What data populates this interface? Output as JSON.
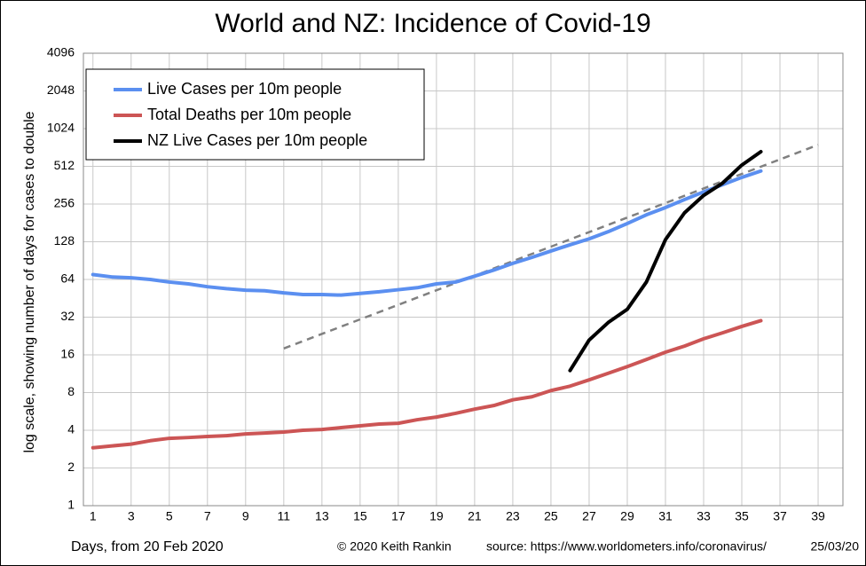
{
  "chart_data": {
    "type": "line",
    "title": "World and NZ: Incidence of Covid-19",
    "y_label": "log scale, showing number of days for cases to double",
    "x_label": "Days, from 20 Feb 2020",
    "credits": [
      "© 2020  Keith Rankin",
      "source: https://www.worldometers.info/coronavirus/",
      "25/03/20"
    ],
    "log_scale_y": true,
    "grid": true,
    "legend_position": "upper-left",
    "x": [
      1,
      2,
      3,
      4,
      5,
      6,
      7,
      8,
      9,
      10,
      11,
      12,
      13,
      14,
      15,
      16,
      17,
      18,
      19,
      20,
      21,
      22,
      23,
      24,
      25,
      26,
      27,
      28,
      29,
      30,
      31,
      32,
      33,
      34,
      35,
      36
    ],
    "series": [
      {
        "name": "Live Cases per 10m people",
        "color": "#5b8ff0",
        "values": [
          70,
          67,
          66,
          64,
          61,
          59,
          56,
          54,
          52.5,
          52,
          50,
          48.5,
          48.5,
          48,
          49.5,
          51,
          53,
          55,
          59,
          61,
          68,
          76,
          86,
          96,
          108,
          121,
          135,
          154,
          179,
          210,
          240,
          278,
          320,
          366,
          418,
          470
        ]
      },
      {
        "name": "Total Deaths per 10m people",
        "color": "#cc5555",
        "values": [
          2.9,
          3,
          3.1,
          3.3,
          3.45,
          3.5,
          3.57,
          3.62,
          3.74,
          3.8,
          3.87,
          4,
          4.06,
          4.2,
          4.34,
          4.48,
          4.55,
          4.86,
          5.1,
          5.46,
          5.9,
          6.3,
          7,
          7.4,
          8.3,
          9,
          10.1,
          11.4,
          12.9,
          14.7,
          16.8,
          18.8,
          21.5,
          24,
          27,
          30
        ]
      },
      {
        "name": "NZ Live Cases per 10m people",
        "color": "#000000",
        "values": [
          null,
          null,
          null,
          null,
          null,
          null,
          null,
          null,
          null,
          null,
          null,
          null,
          null,
          null,
          null,
          null,
          null,
          null,
          null,
          null,
          null,
          null,
          null,
          null,
          null,
          12,
          21,
          29,
          37,
          61,
          133,
          218,
          300,
          377,
          524,
          670
        ]
      }
    ],
    "trend": {
      "x": [
        11,
        39
      ],
      "values": [
        18,
        760
      ],
      "color": "#808080"
    },
    "xlim": [
      0.5,
      40.3
    ],
    "xticks": [
      1,
      3,
      5,
      7,
      9,
      11,
      13,
      15,
      17,
      19,
      21,
      23,
      25,
      27,
      29,
      31,
      33,
      35,
      37,
      39
    ],
    "ylim": [
      1,
      4096
    ],
    "yticks": [
      1,
      2,
      4,
      8,
      16,
      32,
      64,
      128,
      256,
      512,
      1024,
      2048,
      4096
    ]
  }
}
